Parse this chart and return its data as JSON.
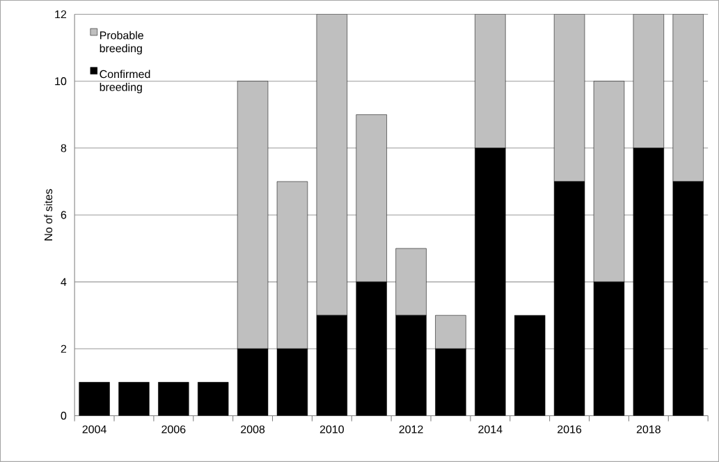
{
  "chart_data": {
    "type": "bar",
    "stacked": true,
    "ylabel": "No of sites",
    "categories": [
      "2004",
      null,
      "2006",
      null,
      "2008",
      null,
      "2010",
      null,
      "2012",
      null,
      "2014",
      null,
      "2016",
      null,
      "2018",
      null
    ],
    "series": [
      {
        "name": "Confirmed breeding",
        "color": "#000000",
        "values": [
          1,
          1,
          1,
          1,
          2,
          2,
          3,
          4,
          3,
          2,
          8,
          3,
          7,
          4,
          8,
          7
        ]
      },
      {
        "name": "Probable breeding",
        "color": "#bfbfbf",
        "values": [
          0,
          0,
          0,
          0,
          8,
          5,
          9,
          5,
          2,
          1,
          4,
          0,
          5,
          6,
          4,
          5
        ]
      }
    ],
    "ylim": [
      0,
      12
    ],
    "yticks": [
      0,
      2,
      4,
      6,
      8,
      10,
      12
    ],
    "grid": "y",
    "legend": "top left"
  }
}
